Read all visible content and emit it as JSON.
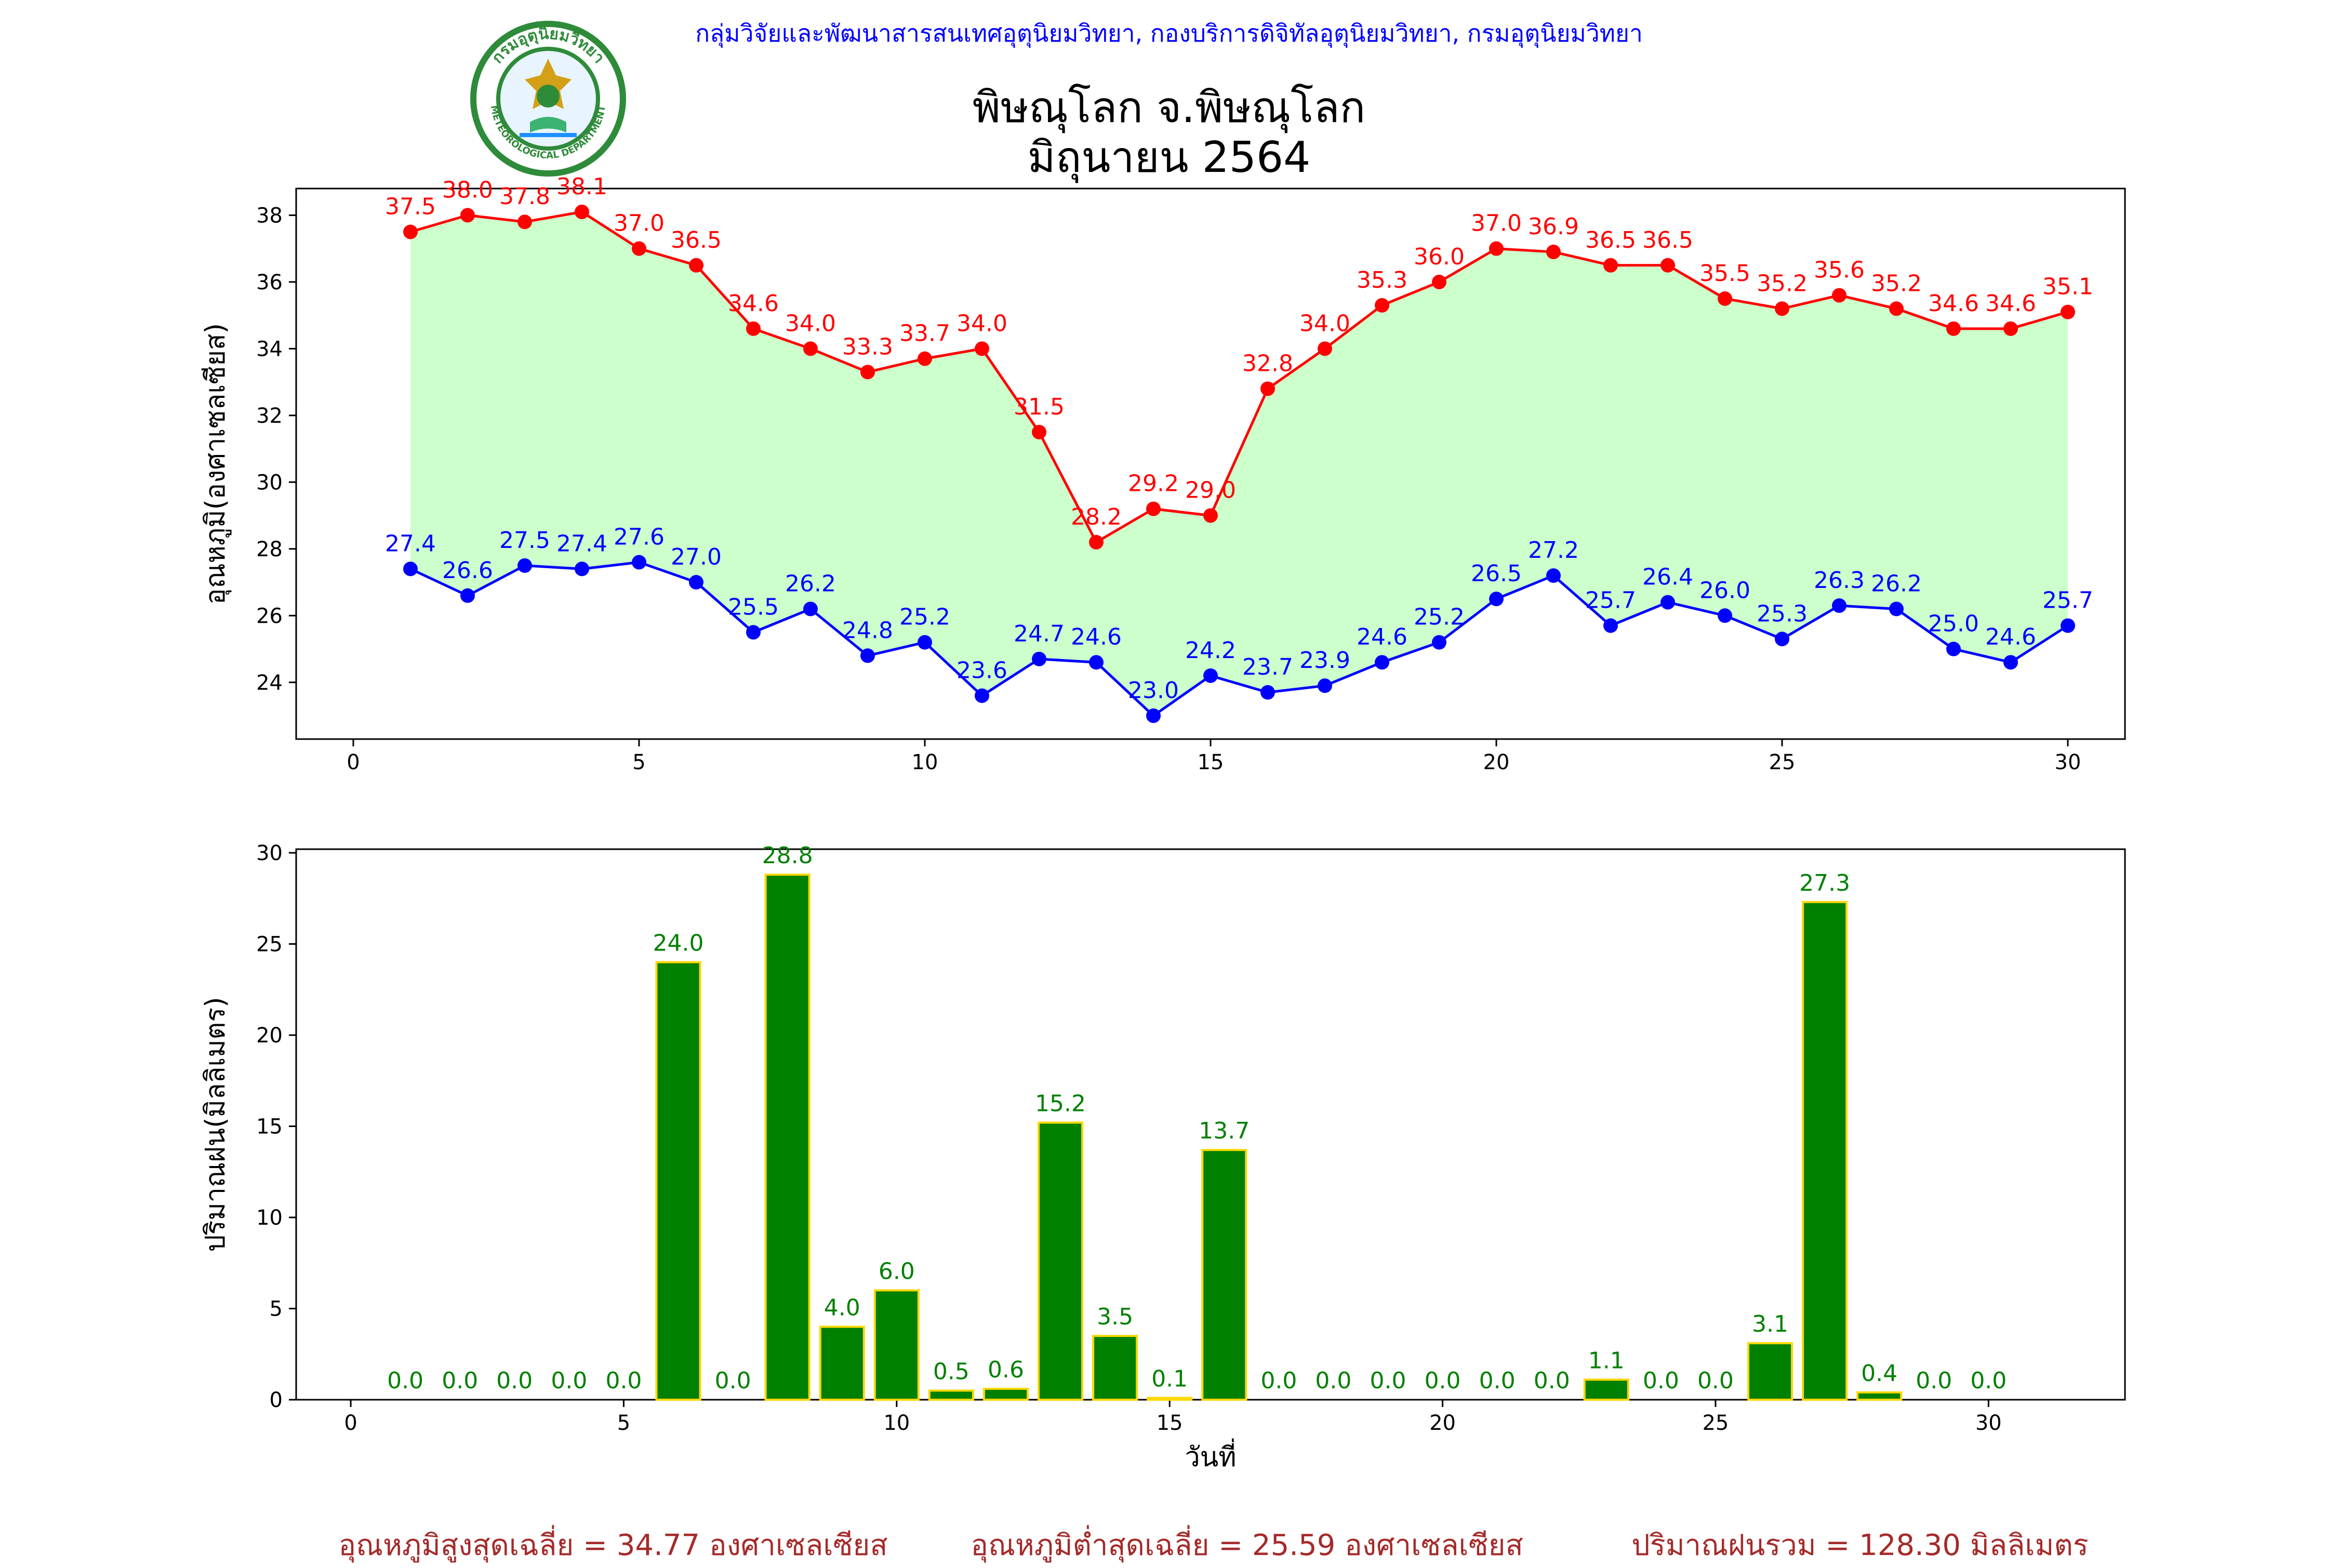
{
  "header": {
    "credit": "กลุ่มวิจัยและพัฒนาสารสนเทศอุตุนิยมวิทยา, กองบริการดิจิทัลอุตุนิยมวิทยา, กรมอุตุนิยมวิทยา",
    "logo_text_top": "กรมอุตุนิยมวิทยา",
    "logo_text_bottom": "METEOROLOGICAL DEPARTMENT"
  },
  "title": {
    "line1": "พิษณุโลก จ.พิษณุโลก",
    "line2": "มิถุนายน 2564"
  },
  "colors": {
    "max_temp": "#ff0000",
    "min_temp": "#0000ff",
    "temp_fill": "#ccffcc",
    "rain_bar": "#008000",
    "rain_edge": "#ffd700",
    "credit": "#0000ff",
    "stats": "#a52a2a"
  },
  "chart_data": [
    {
      "type": "line",
      "ylabel": "อุณหภูมิ(องศาเซลเซียส)",
      "xlabel": "",
      "xlim": [
        -1,
        31
      ],
      "ylim": [
        22.3,
        38.8
      ],
      "xticks": [
        0,
        5,
        10,
        15,
        20,
        25,
        30
      ],
      "yticks": [
        24,
        26,
        28,
        30,
        32,
        34,
        36,
        38
      ],
      "fill_between": true,
      "x": [
        1,
        2,
        3,
        4,
        5,
        6,
        7,
        8,
        9,
        10,
        11,
        12,
        13,
        14,
        15,
        16,
        17,
        18,
        19,
        20,
        21,
        22,
        23,
        24,
        25,
        26,
        27,
        28,
        29,
        30
      ],
      "series": [
        {
          "values": [
            37.5,
            38.0,
            37.8,
            38.1,
            37.0,
            36.5,
            34.6,
            34.0,
            33.3,
            33.7,
            34.0,
            31.5,
            28.2,
            29.2,
            29.0,
            32.8,
            34.0,
            35.3,
            36.0,
            37.0,
            36.9,
            36.5,
            36.5,
            35.5,
            35.2,
            35.6,
            35.2,
            34.6,
            34.6,
            35.1
          ]
        },
        {
          "values": [
            27.4,
            26.6,
            27.5,
            27.4,
            27.6,
            27.0,
            25.5,
            26.2,
            24.8,
            25.2,
            23.6,
            24.7,
            24.6,
            23.0,
            24.2,
            23.7,
            23.9,
            24.6,
            25.2,
            26.5,
            27.2,
            25.7,
            26.4,
            26.0,
            25.3,
            26.3,
            26.2,
            25.0,
            24.6,
            25.7
          ]
        }
      ]
    },
    {
      "type": "bar",
      "ylabel": "ปริมาณฝน(มิลลิเมตร)",
      "xlabel": "วันที่",
      "xlim": [
        -1,
        32.5
      ],
      "ylim": [
        0,
        30.2
      ],
      "xticks": [
        0,
        5,
        10,
        15,
        20,
        25,
        30
      ],
      "yticks": [
        0,
        5,
        10,
        15,
        20,
        25,
        30
      ],
      "x": [
        1,
        2,
        3,
        4,
        5,
        6,
        7,
        8,
        9,
        10,
        11,
        12,
        13,
        14,
        15,
        16,
        17,
        18,
        19,
        20,
        21,
        22,
        23,
        24,
        25,
        26,
        27,
        28,
        29,
        30
      ],
      "values": [
        0.0,
        0.0,
        0.0,
        0.0,
        0.0,
        24.0,
        0.0,
        28.8,
        4.0,
        6.0,
        0.5,
        0.6,
        15.2,
        3.5,
        0.1,
        13.7,
        0.0,
        0.0,
        0.0,
        0.0,
        0.0,
        0.0,
        1.1,
        0.0,
        0.0,
        3.1,
        27.3,
        0.4,
        0.0,
        0.0
      ]
    }
  ],
  "footer": {
    "avg_max": "อุณหภูมิสูงสุดเฉลี่ย = 34.77 องศาเซลเซียส",
    "avg_min": "อุณหภูมิต่ำสุดเฉลี่ย = 25.59 องศาเซลเซียส",
    "total_rain": "ปริมาณฝนรวม = 128.30 มิลลิเมตร"
  }
}
